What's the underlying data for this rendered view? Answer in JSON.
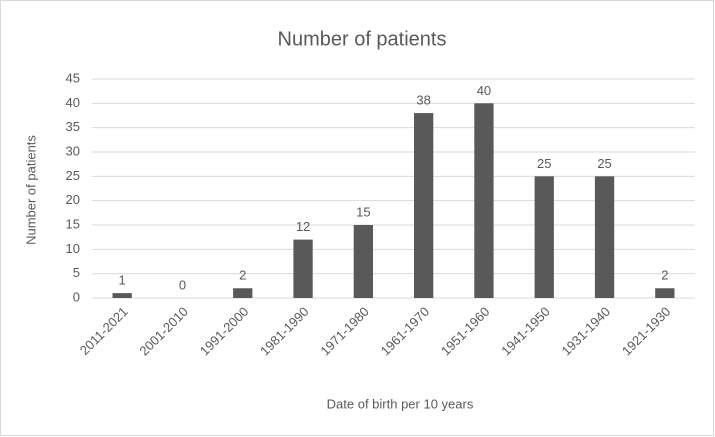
{
  "chart_data": {
    "type": "bar",
    "title": "Number of patients",
    "x_label": "Date of birth per 10 years",
    "y_label": "Number of patients",
    "categories": [
      "2011-2021",
      "2001-2010",
      "1991-2000",
      "1981-1990",
      "1971-1980",
      "1961-1970",
      "1951-1960",
      "1941-1950",
      "1931-1940",
      "1921-1930"
    ],
    "values": [
      1,
      0,
      2,
      12,
      15,
      38,
      40,
      25,
      25,
      2
    ],
    "color": "#595959",
    "ylim": [
      0,
      45
    ],
    "yticks": [
      0,
      5,
      10,
      15,
      20,
      25,
      30,
      35,
      40,
      45
    ],
    "grid": true
  }
}
